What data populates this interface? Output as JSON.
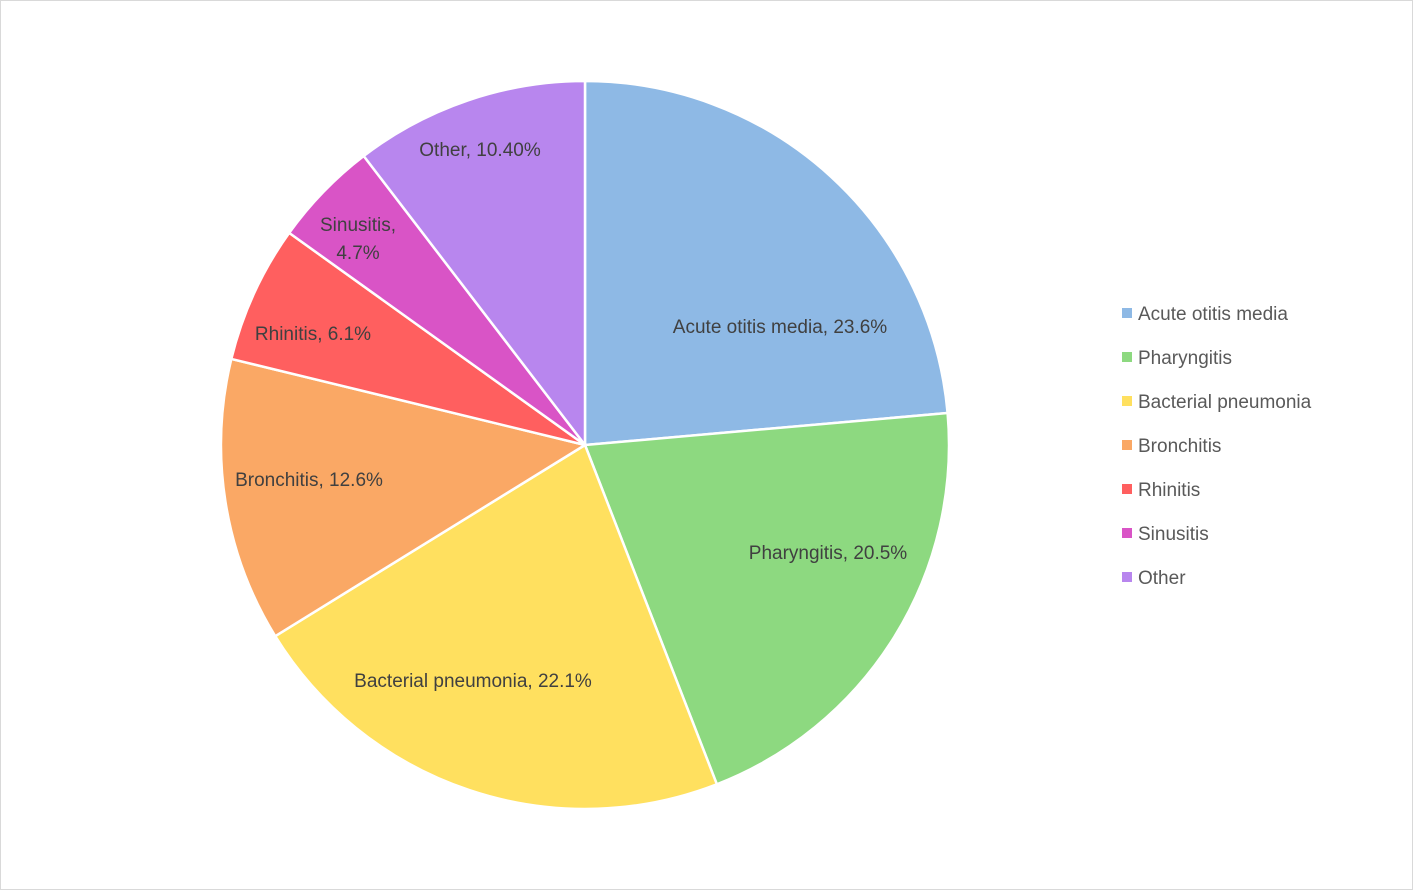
{
  "chart_data": {
    "type": "pie",
    "title": "",
    "categories": [
      "Acute otitis media",
      "Pharyngitis",
      "Bacterial pneumonia",
      "Bronchitis",
      "Rhinitis",
      "Sinusitis",
      "Other"
    ],
    "values": [
      23.6,
      20.5,
      22.1,
      12.6,
      6.1,
      4.7,
      10.4
    ],
    "data_labels": [
      "Acute otitis media, 23.6%",
      "Pharyngitis, 20.5%",
      "Bacterial pneumonia, 22.1%",
      "Bronchitis, 12.6%",
      "Rhinitis, 6.1%",
      "Sinusitis, 4.7%",
      "Other, 10.40%"
    ],
    "colors": [
      "#8EB9E5",
      "#8DD980",
      "#FFE05F",
      "#FAA865",
      "#FF5F5F",
      "#D954C6",
      "#B886EE"
    ],
    "start_angle": "12 o'clock",
    "direction": "clockwise",
    "legend": {
      "position": "right"
    }
  }
}
